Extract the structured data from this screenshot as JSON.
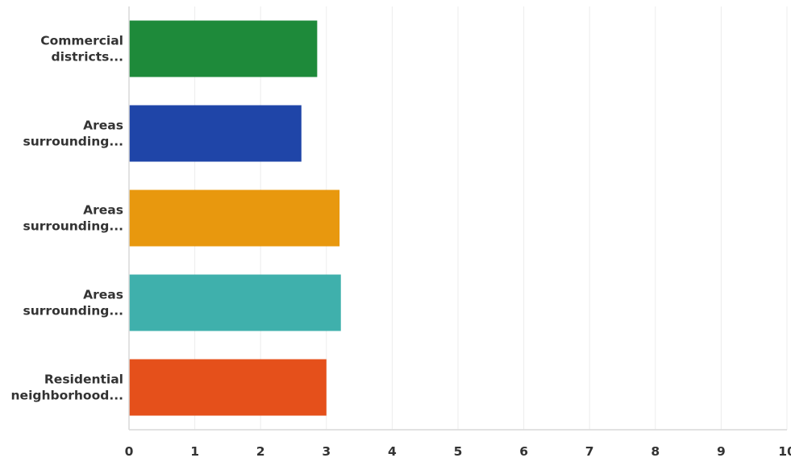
{
  "chart_data": {
    "type": "bar",
    "orientation": "horizontal",
    "categories": [
      [
        "Commercial",
        "districts..."
      ],
      [
        "Areas",
        "surrounding..."
      ],
      [
        "Areas",
        "surrounding..."
      ],
      [
        "Areas",
        "surrounding..."
      ],
      [
        "Residential",
        "neighborhood..."
      ]
    ],
    "values": [
      2.86,
      2.62,
      3.2,
      3.22,
      3.0
    ],
    "colors": [
      "#1e8a3a",
      "#1f45a8",
      "#e8980e",
      "#3fb0ac",
      "#e5501b"
    ],
    "xlim": [
      0,
      10
    ],
    "xticks": [
      "0",
      "1",
      "2",
      "3",
      "4",
      "5",
      "6",
      "7",
      "8",
      "9",
      "10"
    ],
    "grid": "vertical",
    "legend": "none"
  }
}
